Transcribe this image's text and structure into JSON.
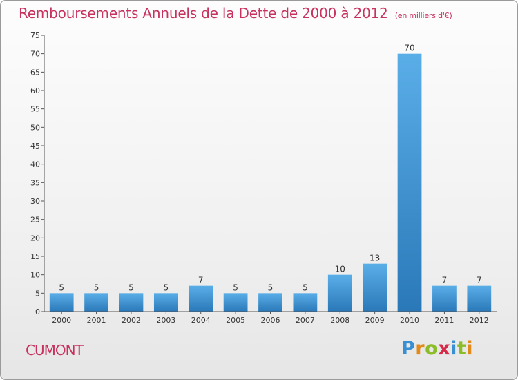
{
  "header": {
    "title": "Remboursements Annuels de la Dette de 2000 à 2012",
    "unit": "(en milliers d'€)"
  },
  "footer": {
    "commune": "CUMONT",
    "logo_text": "Proxiti"
  },
  "colors": {
    "bar_top": "#5aaee8",
    "bar_bottom": "#2a78b8",
    "title": "#c8325f",
    "axis": "#555555"
  },
  "chart_data": {
    "type": "bar",
    "title": "Remboursements Annuels de la Dette de 2000 à 2012",
    "subtitle": "(en milliers d'€)",
    "categories": [
      "2000",
      "2001",
      "2002",
      "2003",
      "2004",
      "2005",
      "2006",
      "2007",
      "2008",
      "2009",
      "2010",
      "2011",
      "2012"
    ],
    "values": [
      5,
      5,
      5,
      5,
      7,
      5,
      5,
      5,
      10,
      13,
      70,
      7,
      7
    ],
    "data_labels": [
      "5",
      "5",
      "5",
      "5",
      "7",
      "5",
      "5",
      "5",
      "10",
      "13",
      "70",
      "7",
      "7"
    ],
    "ylim": [
      0,
      75
    ],
    "yticks": [
      0,
      5,
      10,
      15,
      20,
      25,
      30,
      35,
      40,
      45,
      50,
      55,
      60,
      65,
      70,
      75
    ],
    "grid": false,
    "xlabel": "",
    "ylabel": ""
  }
}
